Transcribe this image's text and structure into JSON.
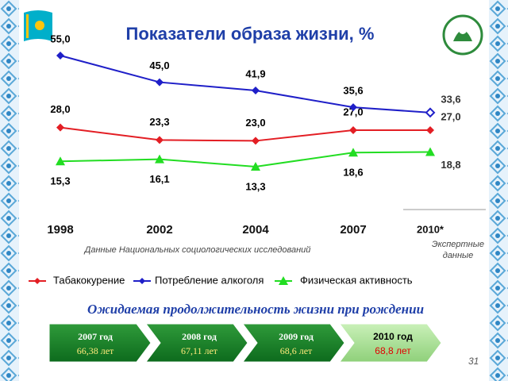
{
  "chart_data": {
    "type": "line",
    "title": "Показатели образа жизни, %",
    "categories": [
      "1998",
      "2002",
      "2004",
      "2007",
      "2010*"
    ],
    "series": [
      {
        "name": "Табакокурение",
        "color": "#e31e24",
        "values": [
          28.0,
          23.3,
          23.0,
          27.0,
          27.0
        ],
        "value_labels": [
          "28,0",
          "23,3",
          "23,0",
          "27,0",
          "27,0"
        ]
      },
      {
        "name": "Потребление алкоголя",
        "color": "#1f1fc8",
        "values": [
          55.0,
          45.0,
          41.9,
          35.6,
          33.6
        ],
        "value_labels": [
          "55,0",
          "45,0",
          "41,9",
          "35,6",
          "33,6"
        ]
      },
      {
        "name": "Физическая активность",
        "color": "#22dd22",
        "values": [
          15.3,
          16.1,
          13.3,
          18.6,
          18.8
        ],
        "value_labels": [
          "15,3",
          "16,1",
          "13,3",
          "18,6",
          "18,8"
        ]
      }
    ]
  },
  "source_note": "Данные   Национальных   социологических   исследований",
  "expert_note": [
    "Экспертные",
    "данные"
  ],
  "subtitle": "Ожидаемая продолжительность жизни при рождении",
  "timeline": [
    {
      "year": "2007 год",
      "value": "66,38 лет"
    },
    {
      "year": "2008 год",
      "value": "67,11 лет"
    },
    {
      "year": "2009 год",
      "value": "68,6 лет"
    },
    {
      "year": "2010 год",
      "value": "68,8 лет"
    }
  ],
  "page_number": "31"
}
